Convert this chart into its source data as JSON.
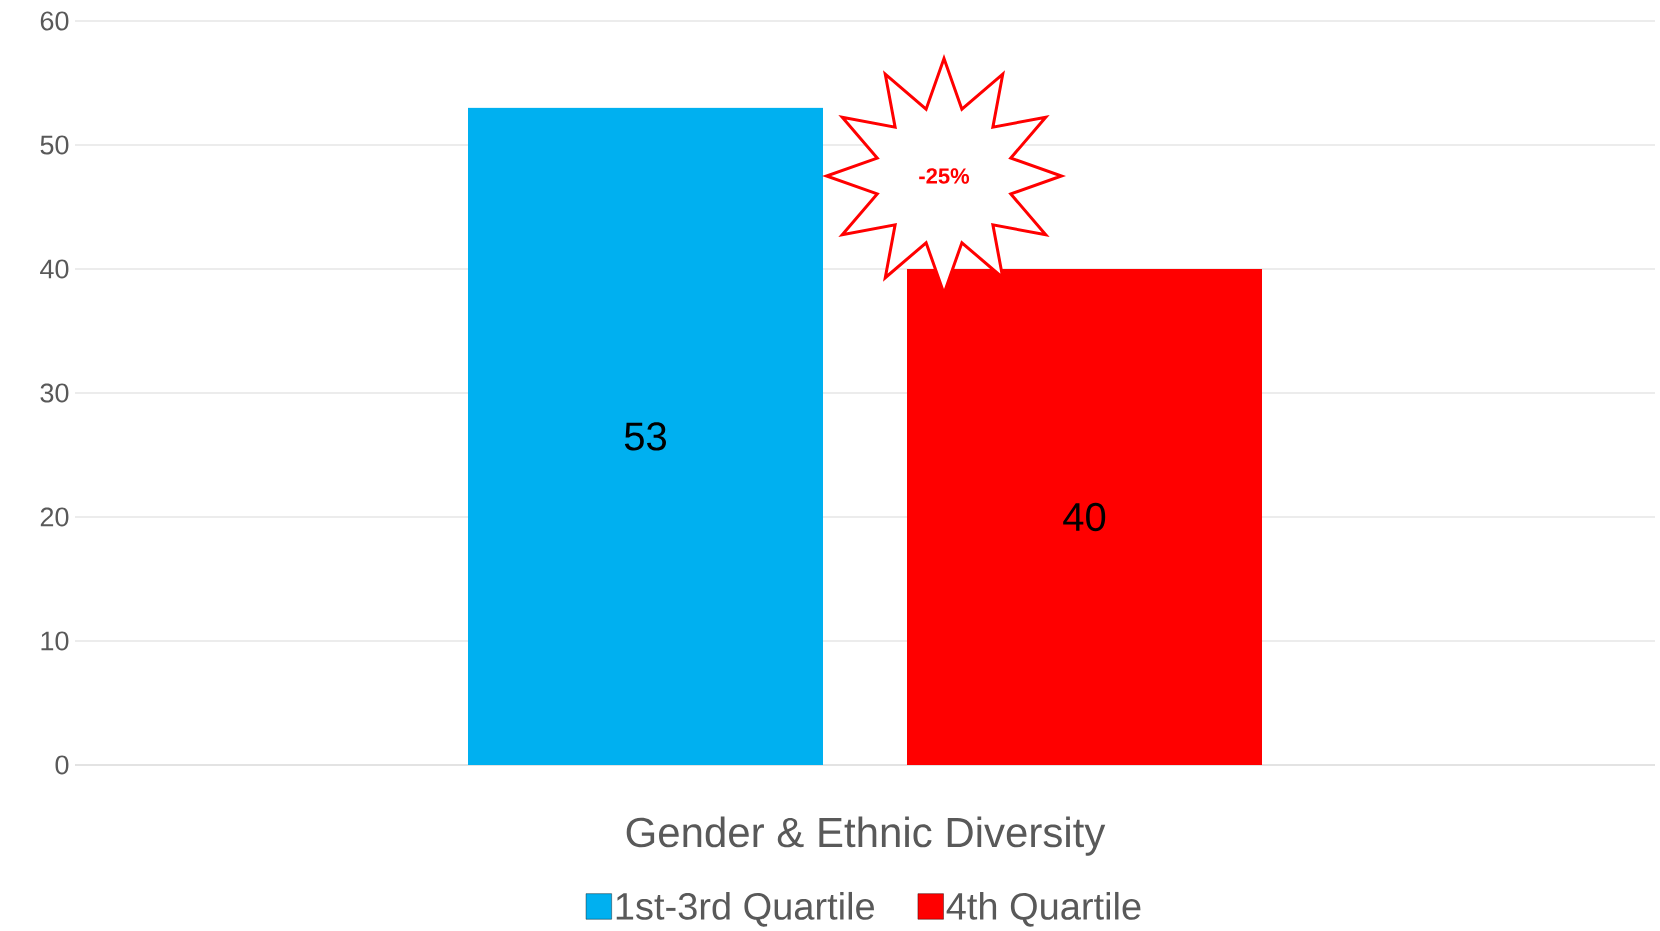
{
  "chart_data": {
    "type": "bar",
    "categories": [
      "Gender & Ethnic Diversity"
    ],
    "series": [
      {
        "name": "1st-3rd Quartile",
        "color": "#00b0f0",
        "values": [
          53
        ]
      },
      {
        "name": "4th Quartile",
        "color": "#ff0000",
        "values": [
          40
        ]
      }
    ],
    "ylim": [
      0,
      60
    ],
    "yticks": [
      0,
      10,
      20,
      30,
      40,
      50,
      60
    ],
    "grid": "y",
    "legend": "bottom",
    "data_labels": true,
    "annotations": [
      "-25%"
    ]
  }
}
